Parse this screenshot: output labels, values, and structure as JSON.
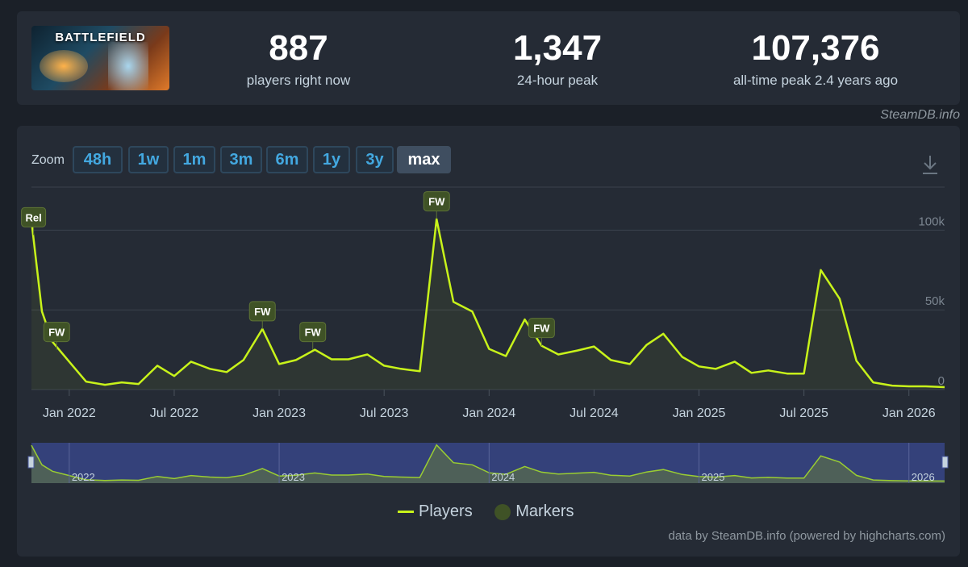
{
  "game": {
    "banner_title": "BATTLEFIELD"
  },
  "stats": [
    {
      "value": "887",
      "label": "players right now"
    },
    {
      "value": "1,347",
      "label": "24-hour peak"
    },
    {
      "value": "107,376",
      "label": "all-time peak 2.4 years ago"
    }
  ],
  "credit_top": "SteamDB.info",
  "zoom": {
    "label": "Zoom",
    "buttons": [
      "48h",
      "1w",
      "1m",
      "3m",
      "6m",
      "1y",
      "3y",
      "max"
    ],
    "active": "max"
  },
  "legend": {
    "players": "Players",
    "markers": "Markers"
  },
  "credit_bottom": "data by SteamDB.info (powered by highcharts.com)",
  "colors": {
    "line": "#c8f31a",
    "marker": "#3f5226",
    "navigator": "#34417a"
  },
  "chart_data": {
    "type": "line",
    "title": "",
    "xlabel": "",
    "ylabel": "Players",
    "xlim": [
      2021.82,
      2026.17
    ],
    "ylim": [
      0,
      125000
    ],
    "yticks": [
      {
        "value": 0,
        "label": "0"
      },
      {
        "value": 50000,
        "label": "50k"
      },
      {
        "value": 100000,
        "label": "100k"
      }
    ],
    "xticks": [
      {
        "value": 2022.0,
        "label": "Jan 2022"
      },
      {
        "value": 2022.5,
        "label": "Jul 2022"
      },
      {
        "value": 2023.0,
        "label": "Jan 2023"
      },
      {
        "value": 2023.5,
        "label": "Jul 2023"
      },
      {
        "value": 2024.0,
        "label": "Jan 2024"
      },
      {
        "value": 2024.5,
        "label": "Jul 2024"
      },
      {
        "value": 2025.0,
        "label": "Jan 2025"
      },
      {
        "value": 2025.5,
        "label": "Jul 2025"
      },
      {
        "value": 2026.0,
        "label": "Jan 2026"
      }
    ],
    "series": [
      {
        "name": "Players",
        "x": [
          2021.82,
          2021.87,
          2021.92,
          2022.0,
          2022.08,
          2022.17,
          2022.25,
          2022.33,
          2022.42,
          2022.5,
          2022.58,
          2022.67,
          2022.75,
          2022.83,
          2022.92,
          2023.0,
          2023.08,
          2023.17,
          2023.25,
          2023.33,
          2023.42,
          2023.5,
          2023.58,
          2023.67,
          2023.75,
          2023.83,
          2023.92,
          2024.0,
          2024.08,
          2024.17,
          2024.25,
          2024.33,
          2024.42,
          2024.5,
          2024.58,
          2024.67,
          2024.75,
          2024.83,
          2024.92,
          2025.0,
          2025.08,
          2025.17,
          2025.25,
          2025.33,
          2025.42,
          2025.5,
          2025.58,
          2025.67,
          2025.75,
          2025.83,
          2025.92,
          2026.0,
          2026.08,
          2026.17
        ],
        "y": [
          106000,
          49000,
          30000,
          17500,
          5000,
          3000,
          4500,
          3500,
          15000,
          8500,
          17500,
          13000,
          11000,
          18500,
          38000,
          16000,
          18500,
          25000,
          19000,
          19000,
          22000,
          15000,
          13000,
          11500,
          107000,
          55000,
          49000,
          25500,
          21000,
          44000,
          27500,
          22000,
          24500,
          27000,
          18500,
          16000,
          28000,
          35000,
          20500,
          14500,
          13000,
          17500,
          10500,
          12000,
          10000,
          10000,
          75000,
          57000,
          18000,
          4500,
          2500,
          2000,
          2000,
          1500
        ]
      }
    ],
    "markers": [
      {
        "label": "Rel",
        "x": 2021.83,
        "y": 97000
      },
      {
        "label": "FW",
        "x": 2021.94,
        "y": 25000
      },
      {
        "label": "FW",
        "x": 2022.92,
        "y": 38000
      },
      {
        "label": "FW",
        "x": 2023.16,
        "y": 25000
      },
      {
        "label": "FW",
        "x": 2023.75,
        "y": 107000
      },
      {
        "label": "FW",
        "x": 2024.25,
        "y": 27500
      }
    ],
    "navigator_labels": [
      {
        "value": 2022.0,
        "label": "2022"
      },
      {
        "value": 2023.0,
        "label": "2023"
      },
      {
        "value": 2024.0,
        "label": "2024"
      },
      {
        "value": 2025.0,
        "label": "2025"
      },
      {
        "value": 2026.0,
        "label": "2026"
      }
    ]
  }
}
